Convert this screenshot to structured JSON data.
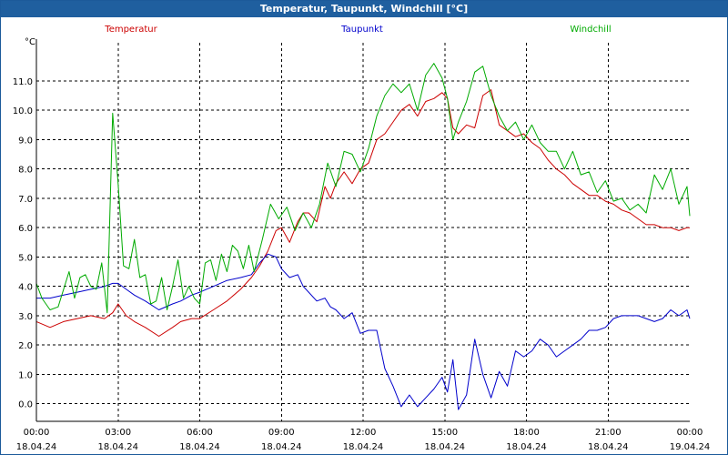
{
  "window": {
    "title": "Temperatur, Taupunkt, Windchill [°C]"
  },
  "chart_data": {
    "type": "line",
    "title": "Temperatur, Taupunkt, Windchill [°C]",
    "ylabel": "°C",
    "ylim": [
      -0.6,
      12.3
    ],
    "xlim": [
      0,
      24
    ],
    "grid": true,
    "legend": "top",
    "y_ticks": [
      "0.0",
      "1.0",
      "2.0",
      "3.0",
      "4.0",
      "5.0",
      "6.0",
      "7.0",
      "8.0",
      "9.0",
      "10.0",
      "11.0"
    ],
    "x_ticks": [
      {
        "time": "00:00",
        "date": "18.04.24"
      },
      {
        "time": "03:00",
        "date": "18.04.24"
      },
      {
        "time": "06:00",
        "date": "18.04.24"
      },
      {
        "time": "09:00",
        "date": "18.04.24"
      },
      {
        "time": "12:00",
        "date": "18.04.24"
      },
      {
        "time": "15:00",
        "date": "18.04.24"
      },
      {
        "time": "18:00",
        "date": "18.04.24"
      },
      {
        "time": "21:00",
        "date": "18.04.24"
      },
      {
        "time": "00:00",
        "date": "19.04.24"
      }
    ],
    "series": [
      {
        "name": "Temperatur",
        "color": "#cc0000",
        "x": [
          0,
          0.5,
          1,
          1.5,
          2,
          2.5,
          2.8,
          3,
          3.3,
          3.6,
          4,
          4.5,
          5,
          5.3,
          5.7,
          6,
          6.5,
          7,
          7.5,
          7.9,
          8.2,
          8.5,
          8.8,
          9,
          9.3,
          9.6,
          9.8,
          10,
          10.3,
          10.6,
          10.8,
          11,
          11.3,
          11.6,
          11.9,
          12.2,
          12.5,
          12.8,
          13.1,
          13.4,
          13.7,
          14,
          14.3,
          14.6,
          14.9,
          15.1,
          15.3,
          15.5,
          15.8,
          16.1,
          16.4,
          16.7,
          17,
          17.3,
          17.6,
          17.9,
          18.2,
          18.5,
          18.8,
          19.1,
          19.4,
          19.7,
          20,
          20.3,
          20.6,
          20.9,
          21.2,
          21.5,
          21.8,
          22.1,
          22.4,
          22.7,
          23,
          23.3,
          23.6,
          23.9,
          24
        ],
        "values": [
          2.8,
          2.6,
          2.8,
          2.9,
          3.0,
          2.9,
          3.1,
          3.4,
          3.0,
          2.8,
          2.6,
          2.3,
          2.6,
          2.8,
          2.9,
          2.9,
          3.2,
          3.5,
          3.9,
          4.3,
          4.7,
          5.2,
          5.9,
          6.0,
          5.5,
          6.2,
          6.5,
          6.5,
          6.2,
          7.4,
          7.0,
          7.5,
          7.9,
          7.5,
          8.0,
          8.2,
          9.0,
          9.2,
          9.6,
          10.0,
          10.2,
          9.8,
          10.3,
          10.4,
          10.6,
          10.4,
          9.4,
          9.2,
          9.5,
          9.4,
          10.5,
          10.7,
          9.5,
          9.3,
          9.1,
          9.2,
          8.9,
          8.7,
          8.3,
          8.0,
          7.8,
          7.5,
          7.3,
          7.1,
          7.1,
          6.9,
          6.8,
          6.6,
          6.5,
          6.3,
          6.1,
          6.1,
          6.0,
          6.0,
          5.9,
          6.0,
          6.0
        ]
      },
      {
        "name": "Taupunkt",
        "color": "#0000cc",
        "x": [
          0,
          0.5,
          1,
          1.5,
          2,
          2.5,
          2.8,
          3,
          3.3,
          3.6,
          4,
          4.5,
          5,
          5.3,
          5.7,
          6,
          6.5,
          7,
          7.5,
          7.9,
          8.2,
          8.5,
          8.8,
          9,
          9.3,
          9.6,
          9.8,
          10,
          10.3,
          10.6,
          10.8,
          11,
          11.3,
          11.6,
          11.9,
          12.2,
          12.5,
          12.8,
          13.1,
          13.4,
          13.7,
          14,
          14.3,
          14.6,
          14.9,
          15.1,
          15.3,
          15.5,
          15.8,
          16.1,
          16.4,
          16.7,
          17,
          17.3,
          17.6,
          17.9,
          18.2,
          18.5,
          18.8,
          19.1,
          19.4,
          19.7,
          20,
          20.3,
          20.6,
          20.9,
          21.2,
          21.5,
          21.8,
          22.1,
          22.4,
          22.7,
          23,
          23.3,
          23.6,
          23.9,
          24
        ],
        "values": [
          3.6,
          3.6,
          3.7,
          3.8,
          3.9,
          4.0,
          4.1,
          4.1,
          3.9,
          3.7,
          3.5,
          3.2,
          3.4,
          3.5,
          3.7,
          3.8,
          4.0,
          4.2,
          4.3,
          4.4,
          4.8,
          5.1,
          5.0,
          4.6,
          4.3,
          4.4,
          4.0,
          3.8,
          3.5,
          3.6,
          3.3,
          3.2,
          2.9,
          3.1,
          2.4,
          2.5,
          2.5,
          1.2,
          0.6,
          -0.1,
          0.3,
          -0.1,
          0.2,
          0.5,
          0.9,
          0.4,
          1.5,
          -0.2,
          0.3,
          2.2,
          1.0,
          0.2,
          1.1,
          0.6,
          1.8,
          1.6,
          1.8,
          2.2,
          2.0,
          1.6,
          1.8,
          2.0,
          2.2,
          2.5,
          2.5,
          2.6,
          2.9,
          3.0,
          3.0,
          3.0,
          2.9,
          2.8,
          2.9,
          3.2,
          3.0,
          3.2,
          2.9
        ]
      },
      {
        "name": "Windchill",
        "color": "#00aa00",
        "x": [
          0,
          0.2,
          0.5,
          0.8,
          1,
          1.2,
          1.4,
          1.6,
          1.8,
          2,
          2.2,
          2.4,
          2.6,
          2.8,
          3,
          3.2,
          3.4,
          3.6,
          3.8,
          4,
          4.2,
          4.4,
          4.6,
          4.8,
          5,
          5.2,
          5.4,
          5.6,
          5.8,
          6,
          6.2,
          6.4,
          6.6,
          6.8,
          7,
          7.2,
          7.4,
          7.6,
          7.8,
          8,
          8.3,
          8.6,
          8.9,
          9.2,
          9.5,
          9.8,
          10.1,
          10.4,
          10.7,
          11,
          11.3,
          11.6,
          11.9,
          12.2,
          12.5,
          12.8,
          13.1,
          13.4,
          13.7,
          14,
          14.3,
          14.6,
          14.9,
          15.1,
          15.3,
          15.5,
          15.8,
          16.1,
          16.4,
          16.7,
          17,
          17.3,
          17.6,
          17.9,
          18.2,
          18.5,
          18.8,
          19.1,
          19.4,
          19.7,
          20,
          20.3,
          20.6,
          20.9,
          21.2,
          21.5,
          21.8,
          22.1,
          22.4,
          22.7,
          23,
          23.3,
          23.6,
          23.9,
          24
        ],
        "values": [
          4.1,
          3.6,
          3.2,
          3.3,
          3.9,
          4.5,
          3.6,
          4.3,
          4.4,
          4.0,
          3.9,
          4.8,
          3.1,
          9.9,
          7.5,
          4.7,
          4.6,
          5.6,
          4.3,
          4.4,
          3.4,
          3.5,
          4.3,
          3.2,
          4.0,
          4.9,
          3.6,
          4.0,
          3.6,
          3.4,
          4.8,
          4.9,
          4.2,
          5.1,
          4.5,
          5.4,
          5.2,
          4.6,
          5.4,
          4.5,
          5.6,
          6.8,
          6.3,
          6.7,
          5.9,
          6.5,
          6.0,
          6.8,
          8.2,
          7.4,
          8.6,
          8.5,
          7.9,
          8.7,
          9.8,
          10.5,
          10.9,
          10.6,
          10.9,
          10.0,
          11.2,
          11.6,
          11.1,
          10.4,
          9.0,
          9.6,
          10.3,
          11.3,
          11.5,
          10.5,
          9.8,
          9.3,
          9.6,
          9.0,
          9.5,
          8.9,
          8.6,
          8.6,
          8.0,
          8.6,
          7.8,
          7.9,
          7.2,
          7.6,
          6.9,
          7.0,
          6.6,
          6.8,
          6.5,
          7.8,
          7.3,
          8.0,
          6.8,
          7.4,
          6.4
        ]
      }
    ]
  }
}
